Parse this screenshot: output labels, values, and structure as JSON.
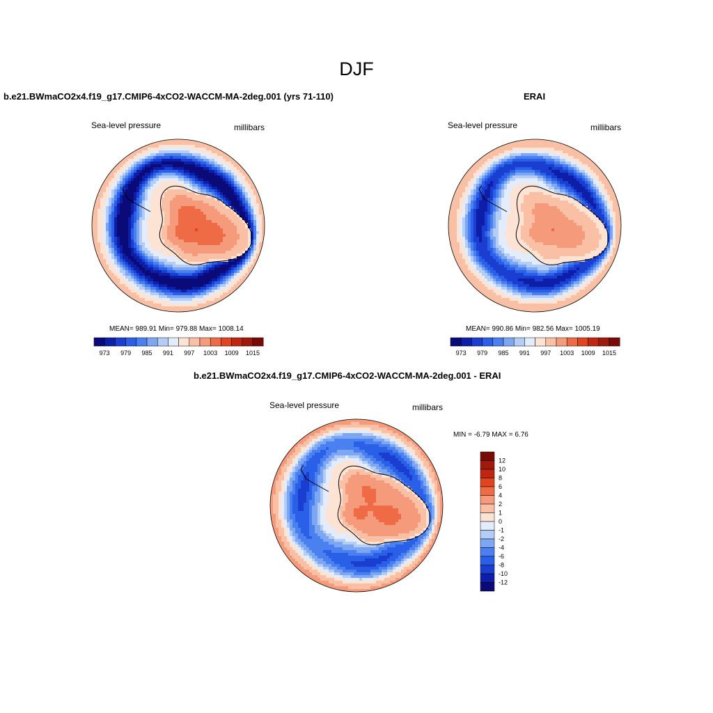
{
  "figure": {
    "title": "DJF"
  },
  "colors": {
    "abs_palette": [
      "#0a0a78",
      "#0d1fa8",
      "#1a3fd0",
      "#2a5fe8",
      "#4a80f0",
      "#7da6f3",
      "#b3cdf6",
      "#e2ecfb",
      "#fde3d4",
      "#f9c0a5",
      "#f59a7a",
      "#ef6b45",
      "#e04520",
      "#c02712",
      "#a01a0c",
      "#7a0a05"
    ],
    "diff_palette": [
      "#0a0a78",
      "#0d1fa8",
      "#1a3fd0",
      "#2a5fe8",
      "#4a80f0",
      "#7da6f3",
      "#b3cdf6",
      "#e2ecfb",
      "#fde3d4",
      "#f9c0a5",
      "#f59a7a",
      "#ef6b45",
      "#e04520",
      "#c02712",
      "#a01a0c",
      "#7a0a05"
    ]
  },
  "chart_data": [
    {
      "type": "heatmap",
      "projection": "south-polar-stereographic",
      "title": "b.e21.BWmaCO2x4.f19_g17.CMIP6-4xCO2-WACCM-MA-2deg.001 (yrs 71-110)",
      "left_label": "Sea-level pressure",
      "right_label": "millibars",
      "stats": {
        "mean": "989.91",
        "min": "979.88",
        "max": "1008.14",
        "text": "MEAN= 989.91  Min= 979.88  Max= 1008.14"
      },
      "colorbar": {
        "orientation": "horizontal",
        "tick_labels": [
          "973",
          "979",
          "985",
          "991",
          "997",
          "1003",
          "1009",
          "1015"
        ]
      },
      "field": {
        "center": 1005,
        "inner_ring": 996,
        "midlat": 981,
        "edge": 999
      }
    },
    {
      "type": "heatmap",
      "projection": "south-polar-stereographic",
      "title": "ERAI",
      "left_label": "Sea-level pressure",
      "right_label": "millibars",
      "stats": {
        "mean": "990.86",
        "min": "982.56",
        "max": "1005.19",
        "text": "MEAN= 990.86  Min= 982.56  Max= 1005.19"
      },
      "colorbar": {
        "orientation": "horizontal",
        "tick_labels": [
          "973",
          "979",
          "985",
          "991",
          "997",
          "1003",
          "1009",
          "1015"
        ]
      },
      "field": {
        "center": 1002,
        "inner_ring": 995,
        "midlat": 984,
        "edge": 1000
      }
    },
    {
      "type": "heatmap",
      "projection": "south-polar-stereographic",
      "title": "b.e21.BWmaCO2x4.f19_g17.CMIP6-4xCO2-WACCM-MA-2deg.001 - ERAI",
      "left_label": "Sea-level pressure",
      "right_label": "millibars",
      "stats": {
        "min": "-6.79",
        "max": "6.76",
        "text": "MIN =  -6.79 MAX =   6.76"
      },
      "colorbar": {
        "orientation": "vertical",
        "tick_labels": [
          "12",
          "10",
          "8",
          "6",
          "4",
          "2",
          "1",
          "0",
          "-1",
          "-2",
          "-4",
          "-6",
          "-8",
          "-10",
          "-12"
        ]
      },
      "field": {
        "center": 4.5,
        "inner_ring": 0.5,
        "midlat": -4,
        "edge": 2.5
      }
    }
  ]
}
